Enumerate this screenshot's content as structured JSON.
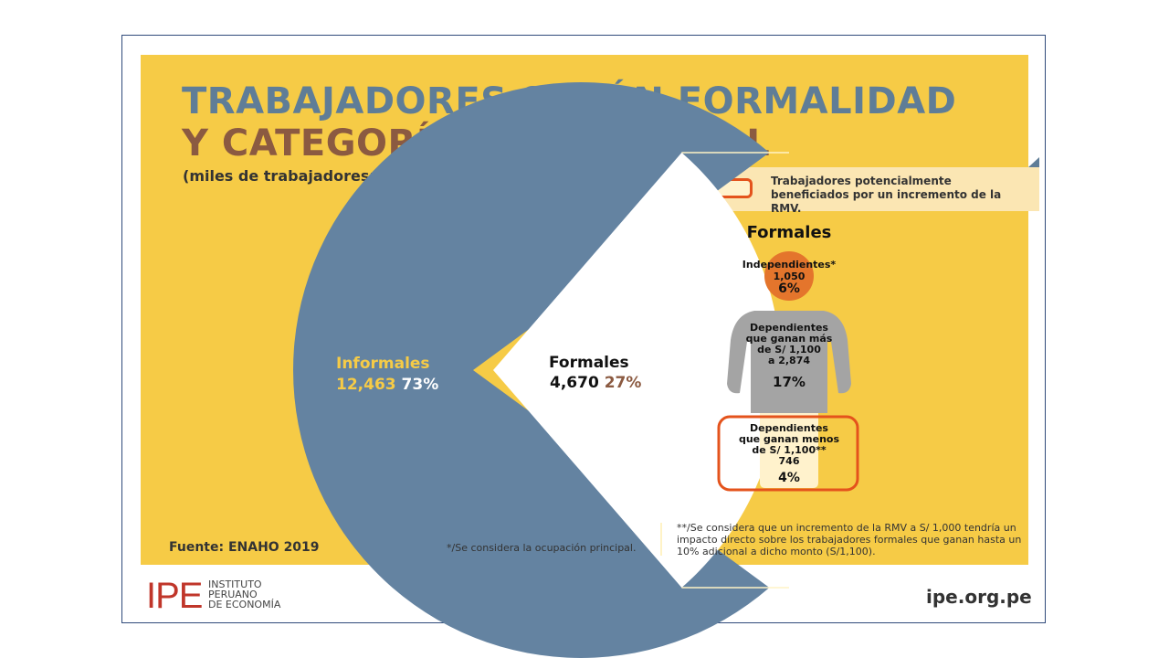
{
  "header": {
    "title_line1": "TRABAJADORES SEGÚN FORMALIDAD",
    "title_line2": "Y CATEGORÍA OCUPACIONAL",
    "subtitle": "(miles de trabajadores; % del total de trabajadores)"
  },
  "legend": {
    "text": "Trabajadores potencialmente beneficiados por un incremento de la RMV."
  },
  "colors": {
    "background": "#f6cb46",
    "informales": "#6483a1",
    "formales": "#ffffff",
    "title_blue": "#5f7d97",
    "title_brown": "#8b5a41",
    "independientes": "#e4752c",
    "dependientes": "#a4a4a4",
    "highlight": "#e4531c"
  },
  "chart_data": [
    {
      "type": "pie",
      "unit": "miles de trabajadores",
      "slices": [
        {
          "name": "Informales",
          "value": 12463,
          "value_label": "12,463",
          "percent": 73,
          "percent_label": "73%"
        },
        {
          "name": "Formales",
          "value": 4670,
          "value_label": "4,670",
          "percent": 27,
          "percent_label": "27%"
        }
      ]
    },
    {
      "type": "bar",
      "title": "Formales",
      "segments": [
        {
          "name": "Independientes*",
          "value": 1050,
          "value_label": "1,050",
          "percent": 6,
          "percent_label": "6%"
        },
        {
          "name_lines": [
            "Dependientes",
            "que ganan más",
            "de S/ 1,100"
          ],
          "value": 2874,
          "value_label": "a  2,874",
          "percent": 17,
          "percent_label": "17%"
        },
        {
          "name_lines": [
            "Dependientes",
            "que ganan menos",
            "de S/ 1,100**"
          ],
          "value": 746,
          "value_label": "746",
          "percent": 4,
          "percent_label": "4%",
          "highlighted": true
        }
      ]
    }
  ],
  "footer": {
    "source": "Fuente: ENAHO 2019",
    "note1": "*/Se considera la ocupación principal.",
    "note2": "**/Se considera que un incremento de la RMV a S/ 1,000 tendría un impacto directo sobre los trabajadores formales que ganan hasta un 10% adicional a dicho monto (S/1,100).",
    "logo": "IPE",
    "logo_text": [
      "INSTITUTO",
      "PERUANO",
      "DE ECONOMÍA"
    ],
    "website": "ipe.org.pe"
  }
}
